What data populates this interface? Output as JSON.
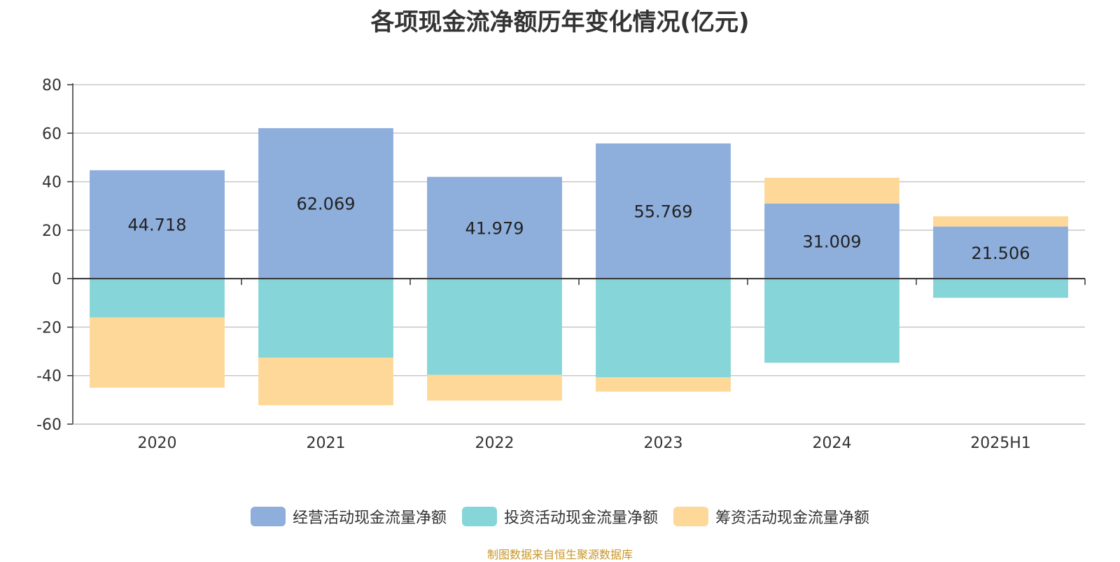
{
  "source_note": "制图数据来自恒生聚源数据库",
  "colors": {
    "operating": "#8eaedc",
    "investing": "#86d5d8",
    "financing": "#fed898",
    "axis": "#333333",
    "grid": "#c8c8c8",
    "text": "#333333"
  },
  "chart_data": {
    "type": "bar",
    "stacked": true,
    "title": "各项现金流净额历年变化情况(亿元)",
    "categories": [
      "2020",
      "2021",
      "2022",
      "2023",
      "2024",
      "2025H1"
    ],
    "ylim": [
      -60,
      80
    ],
    "yticks": [
      "80",
      "60",
      "40",
      "20",
      "0",
      "-20",
      "-40",
      "-60"
    ],
    "ytick_values": [
      80,
      60,
      40,
      20,
      0,
      -20,
      -40,
      -60
    ],
    "grid": true,
    "legend_position": "bottom",
    "series": [
      {
        "name": "经营活动现金流量净额",
        "values": [
          44.718,
          62.069,
          41.979,
          55.769,
          31.009,
          21.506
        ],
        "labeled": true
      },
      {
        "name": "投资活动现金流量净额",
        "values": [
          -16.0,
          -32.6,
          -39.7,
          -40.7,
          -34.7,
          -7.9
        ],
        "labeled": false
      },
      {
        "name": "筹资活动现金流量净额",
        "values": [
          -29.0,
          -19.6,
          -10.6,
          -5.9,
          10.6,
          4.2
        ],
        "labeled": false
      }
    ],
    "data_labels": [
      "44.718",
      "62.069",
      "41.979",
      "55.769",
      "31.009",
      "21.506"
    ]
  }
}
